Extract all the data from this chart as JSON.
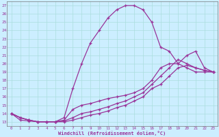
{
  "xlabel": "Windchill (Refroidissement éolien,°C)",
  "bg_color": "#cceeff",
  "line_color": "#993399",
  "grid_color": "#aadddd",
  "spine_color": "#777777",
  "xlim": [
    -0.5,
    23.5
  ],
  "ylim": [
    12.5,
    27.5
  ],
  "yticks": [
    13,
    14,
    15,
    16,
    17,
    18,
    19,
    20,
    21,
    22,
    23,
    24,
    25,
    26,
    27
  ],
  "xticks": [
    0,
    1,
    2,
    3,
    4,
    5,
    6,
    7,
    8,
    9,
    10,
    11,
    12,
    13,
    14,
    15,
    16,
    17,
    18,
    19,
    20,
    21,
    22,
    23
  ],
  "curve1_x": [
    0,
    1,
    2,
    3,
    4,
    5,
    6,
    7,
    8,
    9,
    10,
    11,
    12,
    13,
    14,
    15,
    16,
    17,
    18,
    19,
    20,
    21,
    22,
    23
  ],
  "curve1_y": [
    14,
    13.2,
    13.1,
    13.0,
    13.0,
    13.0,
    13.5,
    17.0,
    20.0,
    22.5,
    24.0,
    25.5,
    26.5,
    27.0,
    27.0,
    26.5,
    25.0,
    22.0,
    21.5,
    20.0,
    19.5,
    19.0,
    19.0,
    19.0
  ],
  "curve2_x": [
    0,
    1,
    2,
    3,
    4,
    5,
    6,
    7,
    8,
    9,
    10,
    11,
    12,
    13,
    14,
    15,
    16,
    17,
    18,
    19,
    20,
    21,
    22,
    23
  ],
  "curve2_y": [
    14,
    13.5,
    13.2,
    13.0,
    13.0,
    13.0,
    13.2,
    14.5,
    15.0,
    15.2,
    15.5,
    15.8,
    16.0,
    16.2,
    16.5,
    17.0,
    18.0,
    19.5,
    20.0,
    20.0,
    21.0,
    21.5,
    19.5,
    19.0
  ],
  "curve3_x": [
    0,
    1,
    2,
    3,
    4,
    5,
    6,
    7,
    8,
    9,
    10,
    11,
    12,
    13,
    14,
    15,
    16,
    17,
    18,
    19,
    20,
    21,
    22,
    23
  ],
  "curve3_y": [
    14,
    13.5,
    13.2,
    13.0,
    13.0,
    13.0,
    13.1,
    13.5,
    14.0,
    14.2,
    14.5,
    14.8,
    15.2,
    15.5,
    16.0,
    16.5,
    17.5,
    18.5,
    19.5,
    20.5,
    20.0,
    19.5,
    19.2,
    19.0
  ],
  "curve4_x": [
    0,
    1,
    2,
    3,
    4,
    5,
    6,
    7,
    8,
    9,
    10,
    11,
    12,
    13,
    14,
    15,
    16,
    17,
    18,
    19,
    20,
    21,
    22,
    23
  ],
  "curve4_y": [
    14,
    13.5,
    13.2,
    13.0,
    13.0,
    13.0,
    13.0,
    13.2,
    13.5,
    13.8,
    14.0,
    14.3,
    14.7,
    15.0,
    15.5,
    16.0,
    17.0,
    17.5,
    18.5,
    19.5,
    19.8,
    19.5,
    19.2,
    19.0
  ]
}
